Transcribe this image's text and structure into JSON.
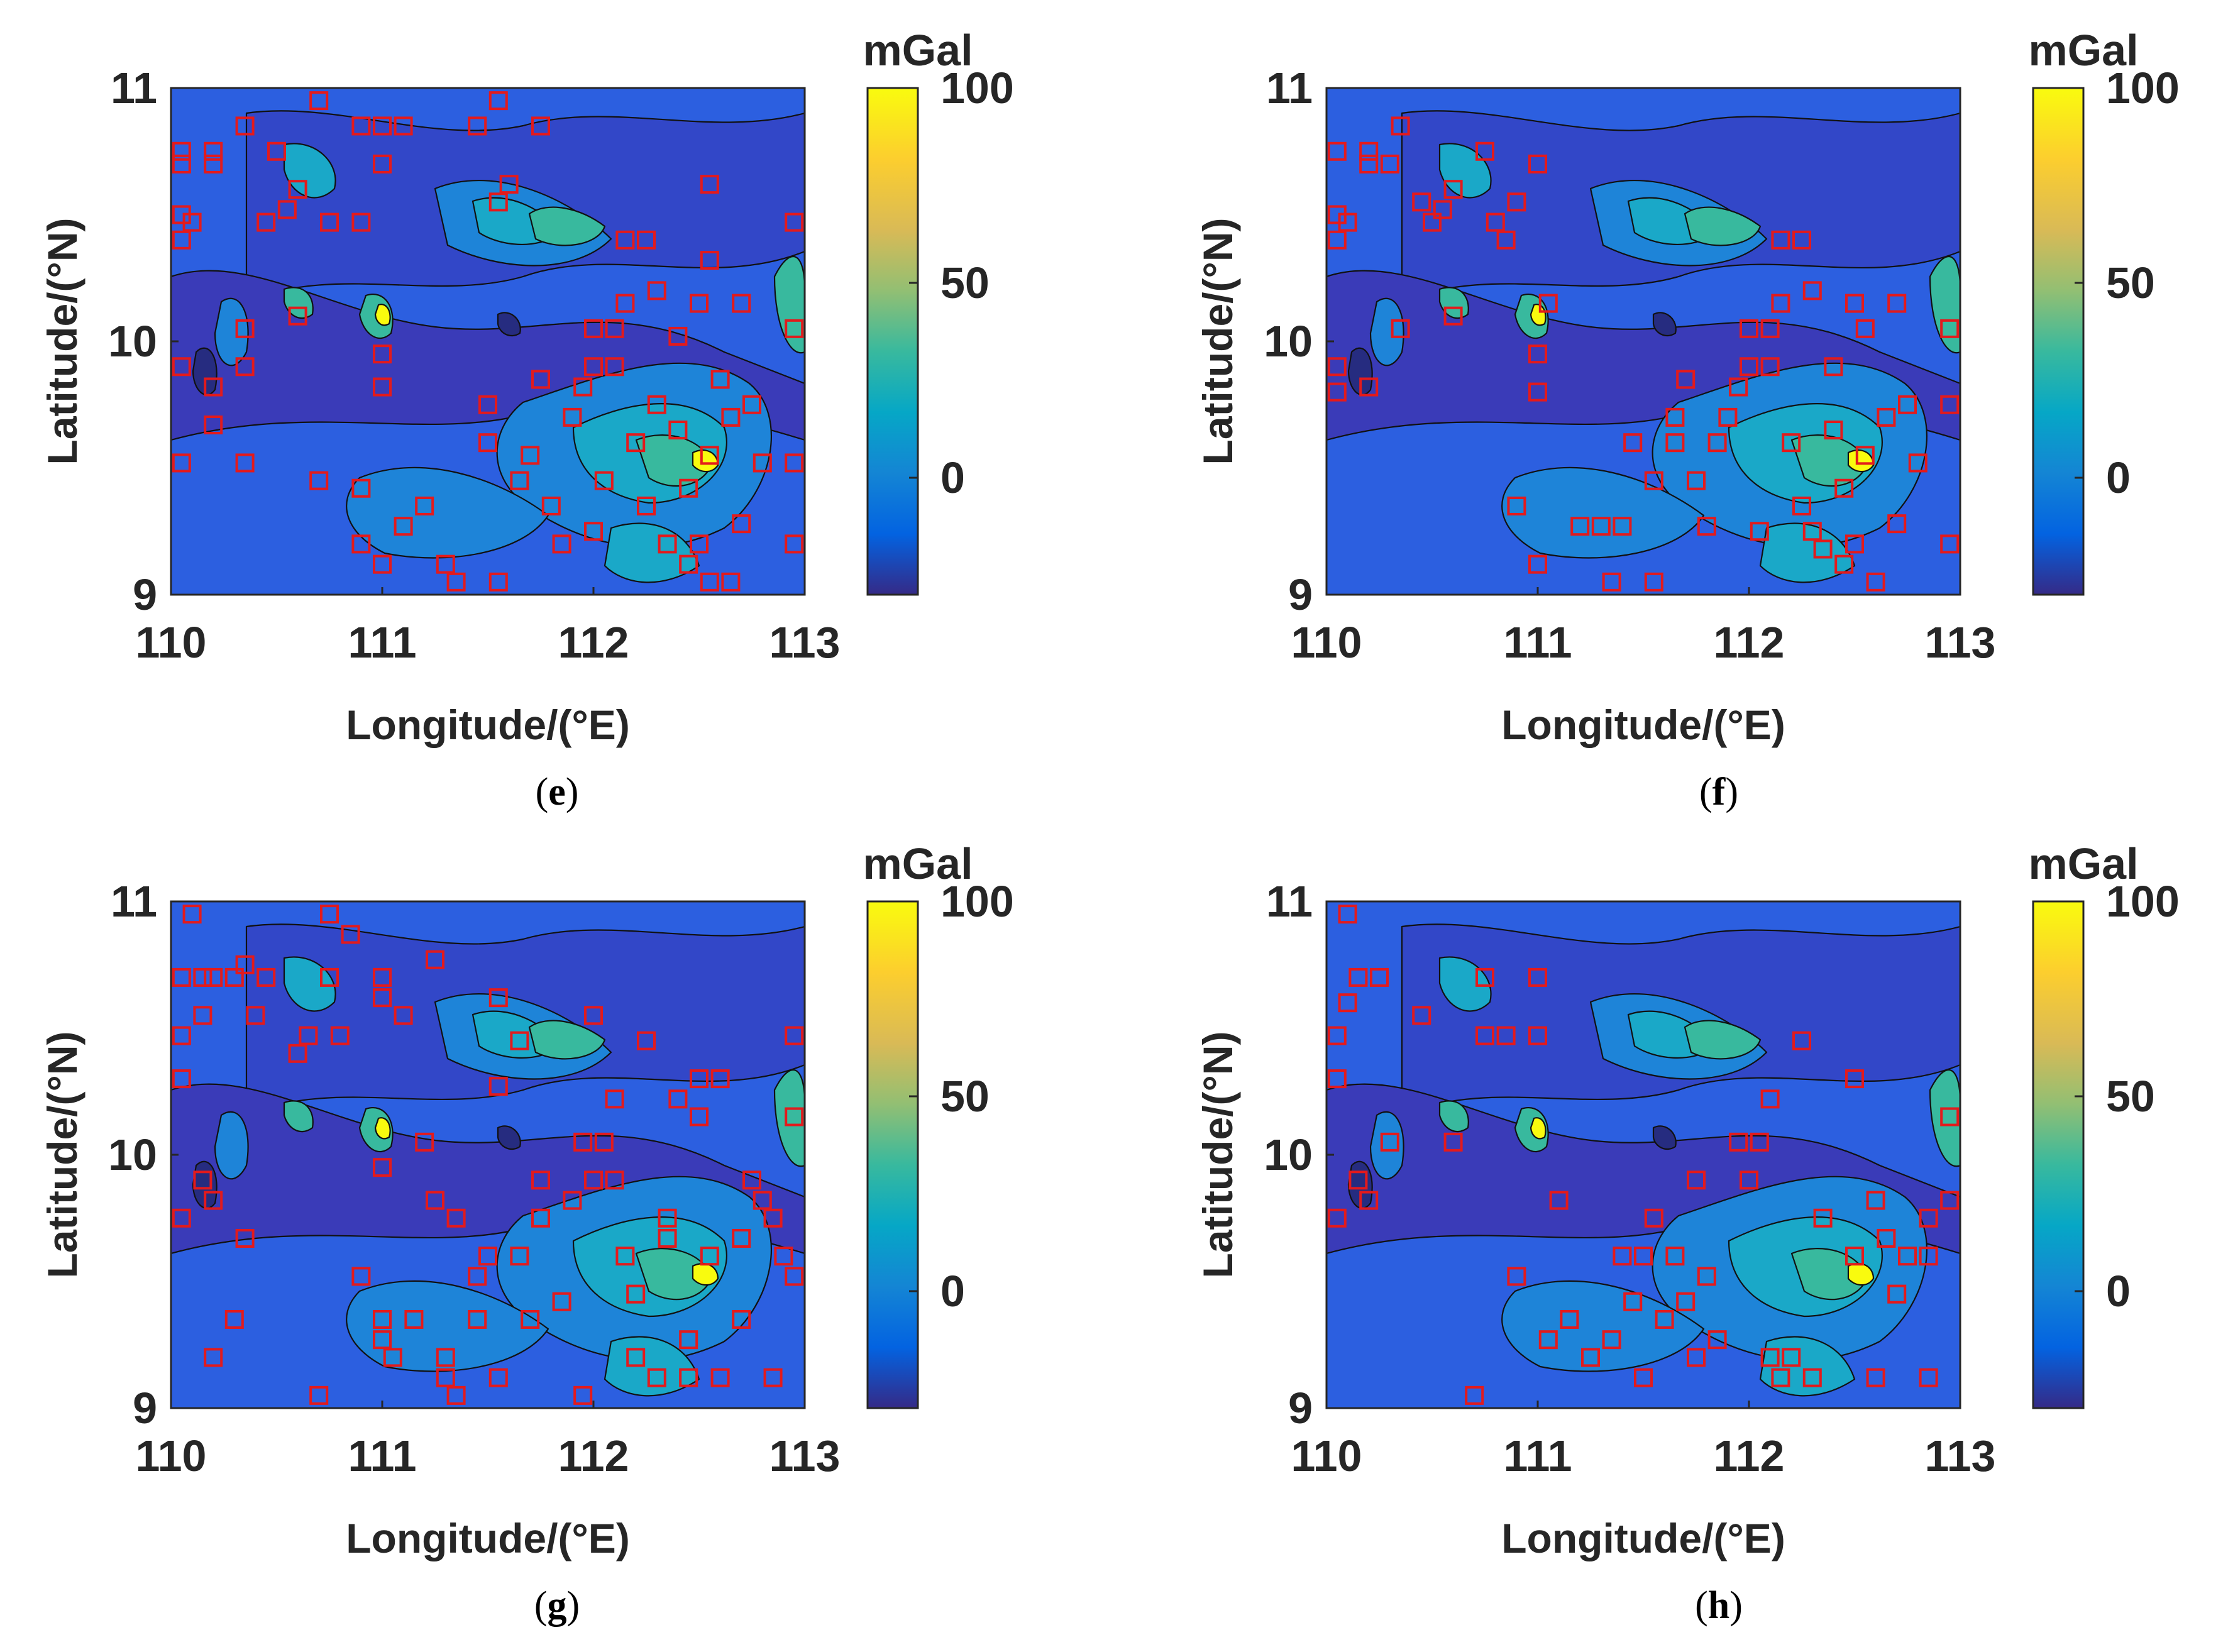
{
  "chart_data": [
    {
      "type": "heatmap",
      "panel_label": "e",
      "xlabel": "Longitude/(°E)",
      "ylabel": "Latitude/(°N)",
      "xlim": [
        110,
        113
      ],
      "ylim": [
        9,
        11
      ],
      "x_ticks": [
        "110",
        "111",
        "112",
        "113"
      ],
      "y_ticks": [
        "9",
        "10",
        "11"
      ],
      "colorbar": {
        "title": "mGal",
        "ticks": [
          "0",
          "50",
          "100"
        ],
        "range": [
          -30,
          100
        ]
      },
      "markers": [
        [
          110.05,
          10.75
        ],
        [
          110.05,
          10.7
        ],
        [
          110.05,
          10.5
        ],
        [
          110.05,
          10.4
        ],
        [
          110.05,
          9.9
        ],
        [
          110.05,
          9.52
        ],
        [
          110.1,
          10.47
        ],
        [
          110.2,
          10.75
        ],
        [
          110.2,
          10.7
        ],
        [
          110.2,
          9.82
        ],
        [
          110.2,
          9.67
        ],
        [
          110.35,
          10.85
        ],
        [
          110.35,
          10.05
        ],
        [
          110.35,
          9.9
        ],
        [
          110.35,
          9.52
        ],
        [
          110.45,
          10.47
        ],
        [
          110.5,
          10.75
        ],
        [
          110.55,
          10.52
        ],
        [
          110.6,
          10.6
        ],
        [
          110.6,
          10.1
        ],
        [
          110.7,
          10.95
        ],
        [
          110.7,
          9.45
        ],
        [
          110.75,
          10.47
        ],
        [
          110.9,
          10.85
        ],
        [
          110.9,
          10.47
        ],
        [
          110.9,
          9.42
        ],
        [
          110.9,
          9.2
        ],
        [
          111.0,
          10.85
        ],
        [
          111.0,
          10.7
        ],
        [
          111.0,
          9.95
        ],
        [
          111.0,
          9.82
        ],
        [
          111.0,
          9.12
        ],
        [
          111.1,
          10.85
        ],
        [
          111.1,
          9.27
        ],
        [
          111.2,
          9.35
        ],
        [
          111.3,
          9.12
        ],
        [
          111.35,
          9.05
        ],
        [
          111.45,
          10.85
        ],
        [
          111.5,
          9.75
        ],
        [
          111.5,
          9.6
        ],
        [
          111.55,
          10.95
        ],
        [
          111.55,
          10.55
        ],
        [
          111.55,
          9.05
        ],
        [
          111.6,
          10.62
        ],
        [
          111.65,
          9.45
        ],
        [
          111.7,
          9.55
        ],
        [
          111.75,
          10.85
        ],
        [
          111.75,
          9.85
        ],
        [
          111.8,
          9.35
        ],
        [
          111.85,
          9.2
        ],
        [
          111.9,
          9.7
        ],
        [
          111.95,
          9.82
        ],
        [
          112.0,
          10.05
        ],
        [
          112.0,
          9.9
        ],
        [
          112.0,
          9.25
        ],
        [
          112.05,
          9.45
        ],
        [
          112.1,
          10.05
        ],
        [
          112.1,
          9.9
        ],
        [
          112.15,
          10.4
        ],
        [
          112.15,
          10.15
        ],
        [
          112.2,
          9.6
        ],
        [
          112.25,
          10.4
        ],
        [
          112.25,
          9.35
        ],
        [
          112.3,
          10.2
        ],
        [
          112.3,
          9.75
        ],
        [
          112.35,
          9.2
        ],
        [
          112.4,
          10.02
        ],
        [
          112.4,
          9.65
        ],
        [
          112.45,
          9.42
        ],
        [
          112.45,
          9.12
        ],
        [
          112.5,
          10.15
        ],
        [
          112.5,
          9.2
        ],
        [
          112.55,
          10.62
        ],
        [
          112.55,
          10.32
        ],
        [
          112.55,
          9.55
        ],
        [
          112.55,
          9.05
        ],
        [
          112.6,
          9.85
        ],
        [
          112.65,
          9.7
        ],
        [
          112.65,
          9.05
        ],
        [
          112.7,
          10.15
        ],
        [
          112.7,
          9.28
        ],
        [
          112.75,
          9.75
        ],
        [
          112.8,
          9.52
        ],
        [
          112.95,
          10.47
        ],
        [
          112.95,
          10.05
        ],
        [
          112.95,
          9.52
        ],
        [
          112.95,
          9.2
        ]
      ]
    },
    {
      "type": "heatmap",
      "panel_label": "f",
      "xlabel": "Longitude/(°E)",
      "ylabel": "Latitude/(°N)",
      "xlim": [
        110,
        113
      ],
      "ylim": [
        9,
        11
      ],
      "x_ticks": [
        "110",
        "111",
        "112",
        "113"
      ],
      "y_ticks": [
        "9",
        "10",
        "11"
      ],
      "colorbar": {
        "title": "mGal",
        "ticks": [
          "0",
          "50",
          "100"
        ],
        "range": [
          -30,
          100
        ]
      },
      "markers": [
        [
          110.05,
          10.75
        ],
        [
          110.05,
          10.5
        ],
        [
          110.05,
          10.4
        ],
        [
          110.05,
          9.9
        ],
        [
          110.05,
          9.8
        ],
        [
          110.1,
          10.47
        ],
        [
          110.2,
          10.75
        ],
        [
          110.2,
          10.7
        ],
        [
          110.2,
          9.82
        ],
        [
          110.3,
          10.7
        ],
        [
          110.35,
          10.85
        ],
        [
          110.35,
          10.05
        ],
        [
          110.45,
          10.55
        ],
        [
          110.5,
          10.47
        ],
        [
          110.55,
          10.52
        ],
        [
          110.6,
          10.6
        ],
        [
          110.6,
          10.1
        ],
        [
          110.75,
          10.75
        ],
        [
          110.8,
          10.47
        ],
        [
          110.85,
          10.4
        ],
        [
          110.9,
          10.55
        ],
        [
          110.9,
          9.35
        ],
        [
          111.0,
          10.7
        ],
        [
          111.0,
          9.95
        ],
        [
          111.0,
          9.8
        ],
        [
          111.0,
          9.12
        ],
        [
          111.05,
          10.15
        ],
        [
          111.2,
          9.27
        ],
        [
          111.3,
          9.27
        ],
        [
          111.35,
          9.05
        ],
        [
          111.4,
          9.27
        ],
        [
          111.45,
          9.6
        ],
        [
          111.55,
          9.45
        ],
        [
          111.55,
          9.05
        ],
        [
          111.65,
          9.7
        ],
        [
          111.65,
          9.6
        ],
        [
          111.7,
          9.85
        ],
        [
          111.75,
          9.45
        ],
        [
          111.8,
          9.27
        ],
        [
          111.85,
          9.6
        ],
        [
          111.9,
          9.7
        ],
        [
          111.95,
          9.82
        ],
        [
          112.0,
          10.05
        ],
        [
          112.0,
          9.9
        ],
        [
          112.05,
          9.25
        ],
        [
          112.1,
          10.05
        ],
        [
          112.1,
          9.9
        ],
        [
          112.15,
          10.4
        ],
        [
          112.15,
          10.15
        ],
        [
          112.2,
          9.6
        ],
        [
          112.25,
          10.4
        ],
        [
          112.25,
          9.35
        ],
        [
          112.3,
          10.2
        ],
        [
          112.3,
          9.25
        ],
        [
          112.35,
          9.18
        ],
        [
          112.4,
          9.9
        ],
        [
          112.4,
          9.65
        ],
        [
          112.45,
          9.42
        ],
        [
          112.45,
          9.12
        ],
        [
          112.5,
          10.15
        ],
        [
          112.5,
          9.2
        ],
        [
          112.55,
          10.05
        ],
        [
          112.55,
          9.55
        ],
        [
          112.6,
          9.05
        ],
        [
          112.65,
          9.7
        ],
        [
          112.7,
          10.15
        ],
        [
          112.7,
          9.28
        ],
        [
          112.75,
          9.75
        ],
        [
          112.8,
          9.52
        ],
        [
          112.95,
          10.05
        ],
        [
          112.95,
          9.75
        ],
        [
          112.95,
          9.2
        ]
      ]
    },
    {
      "type": "heatmap",
      "panel_label": "g",
      "xlabel": "Longitude/(°E)",
      "ylabel": "Latitude/(°N)",
      "xlim": [
        110,
        113
      ],
      "ylim": [
        9,
        11
      ],
      "x_ticks": [
        "110",
        "111",
        "112",
        "113"
      ],
      "y_ticks": [
        "9",
        "10",
        "11"
      ],
      "colorbar": {
        "title": "mGal",
        "ticks": [
          "0",
          "50",
          "100"
        ],
        "range": [
          -30,
          100
        ]
      },
      "markers": [
        [
          110.1,
          10.95
        ],
        [
          110.05,
          10.7
        ],
        [
          110.05,
          10.47
        ],
        [
          110.05,
          10.3
        ],
        [
          110.05,
          9.75
        ],
        [
          110.15,
          10.7
        ],
        [
          110.15,
          10.55
        ],
        [
          110.15,
          9.9
        ],
        [
          110.2,
          10.7
        ],
        [
          110.2,
          9.82
        ],
        [
          110.2,
          9.2
        ],
        [
          110.3,
          10.7
        ],
        [
          110.3,
          9.35
        ],
        [
          110.35,
          10.75
        ],
        [
          110.35,
          9.67
        ],
        [
          110.4,
          10.55
        ],
        [
          110.45,
          10.7
        ],
        [
          110.6,
          10.4
        ],
        [
          110.65,
          10.47
        ],
        [
          110.7,
          9.05
        ],
        [
          110.75,
          10.95
        ],
        [
          110.75,
          10.7
        ],
        [
          110.8,
          10.47
        ],
        [
          110.85,
          10.87
        ],
        [
          110.9,
          9.52
        ],
        [
          111.0,
          10.7
        ],
        [
          111.0,
          10.62
        ],
        [
          111.0,
          9.95
        ],
        [
          111.0,
          9.35
        ],
        [
          111.0,
          9.27
        ],
        [
          111.05,
          9.2
        ],
        [
          111.1,
          10.55
        ],
        [
          111.15,
          9.35
        ],
        [
          111.2,
          10.05
        ],
        [
          111.25,
          10.77
        ],
        [
          111.25,
          9.82
        ],
        [
          111.3,
          9.2
        ],
        [
          111.3,
          9.12
        ],
        [
          111.35,
          9.05
        ],
        [
          111.35,
          9.75
        ],
        [
          111.45,
          9.52
        ],
        [
          111.45,
          9.35
        ],
        [
          111.5,
          9.6
        ],
        [
          111.55,
          10.62
        ],
        [
          111.55,
          10.27
        ],
        [
          111.55,
          9.12
        ],
        [
          111.65,
          10.45
        ],
        [
          111.65,
          9.6
        ],
        [
          111.7,
          9.35
        ],
        [
          111.75,
          9.9
        ],
        [
          111.75,
          9.75
        ],
        [
          111.85,
          9.42
        ],
        [
          111.9,
          9.82
        ],
        [
          111.95,
          10.05
        ],
        [
          111.95,
          9.05
        ],
        [
          112.0,
          10.55
        ],
        [
          112.0,
          9.9
        ],
        [
          112.05,
          10.05
        ],
        [
          112.1,
          10.22
        ],
        [
          112.1,
          9.9
        ],
        [
          112.15,
          9.6
        ],
        [
          112.2,
          9.45
        ],
        [
          112.2,
          9.2
        ],
        [
          112.25,
          10.45
        ],
        [
          112.3,
          9.12
        ],
        [
          112.35,
          9.75
        ],
        [
          112.35,
          9.67
        ],
        [
          112.4,
          10.22
        ],
        [
          112.45,
          9.27
        ],
        [
          112.45,
          9.12
        ],
        [
          112.5,
          10.3
        ],
        [
          112.5,
          10.15
        ],
        [
          112.55,
          9.6
        ],
        [
          112.6,
          10.3
        ],
        [
          112.6,
          9.12
        ],
        [
          112.7,
          9.35
        ],
        [
          112.7,
          9.67
        ],
        [
          112.75,
          9.9
        ],
        [
          112.8,
          9.82
        ],
        [
          112.85,
          9.75
        ],
        [
          112.9,
          9.6
        ],
        [
          112.85,
          9.12
        ],
        [
          112.95,
          10.47
        ],
        [
          112.95,
          10.15
        ],
        [
          112.95,
          9.52
        ]
      ]
    },
    {
      "type": "heatmap",
      "panel_label": "h",
      "xlabel": "Longitude/(°E)",
      "ylabel": "Latitude/(°N)",
      "xlim": [
        110,
        113
      ],
      "ylim": [
        9,
        11
      ],
      "x_ticks": [
        "110",
        "111",
        "112",
        "113"
      ],
      "y_ticks": [
        "9",
        "10",
        "11"
      ],
      "colorbar": {
        "title": "mGal",
        "ticks": [
          "0",
          "50",
          "100"
        ],
        "range": [
          -30,
          100
        ]
      },
      "markers": [
        [
          110.1,
          10.95
        ],
        [
          110.05,
          10.47
        ],
        [
          110.05,
          10.3
        ],
        [
          110.05,
          9.75
        ],
        [
          110.1,
          10.6
        ],
        [
          110.15,
          10.7
        ],
        [
          110.15,
          9.9
        ],
        [
          110.2,
          9.82
        ],
        [
          110.25,
          10.7
        ],
        [
          110.3,
          10.05
        ],
        [
          110.45,
          10.55
        ],
        [
          110.6,
          10.05
        ],
        [
          110.7,
          9.05
        ],
        [
          110.75,
          10.7
        ],
        [
          110.75,
          10.47
        ],
        [
          110.85,
          10.47
        ],
        [
          110.9,
          9.52
        ],
        [
          111.0,
          10.7
        ],
        [
          111.0,
          10.47
        ],
        [
          111.05,
          9.27
        ],
        [
          111.1,
          9.82
        ],
        [
          111.15,
          9.35
        ],
        [
          111.25,
          9.2
        ],
        [
          111.35,
          9.27
        ],
        [
          111.4,
          9.6
        ],
        [
          111.45,
          9.42
        ],
        [
          111.5,
          9.6
        ],
        [
          111.5,
          9.12
        ],
        [
          111.55,
          9.75
        ],
        [
          111.6,
          9.35
        ],
        [
          111.65,
          9.6
        ],
        [
          111.7,
          9.42
        ],
        [
          111.75,
          9.9
        ],
        [
          111.75,
          9.2
        ],
        [
          111.8,
          9.52
        ],
        [
          111.85,
          9.27
        ],
        [
          111.95,
          10.05
        ],
        [
          112.0,
          9.9
        ],
        [
          112.05,
          10.05
        ],
        [
          112.1,
          10.22
        ],
        [
          112.1,
          9.2
        ],
        [
          112.15,
          9.12
        ],
        [
          112.2,
          9.2
        ],
        [
          112.25,
          10.45
        ],
        [
          112.3,
          9.12
        ],
        [
          112.35,
          9.75
        ],
        [
          112.5,
          10.3
        ],
        [
          112.5,
          9.6
        ],
        [
          112.6,
          9.82
        ],
        [
          112.6,
          9.12
        ],
        [
          112.65,
          9.67
        ],
        [
          112.7,
          9.45
        ],
        [
          112.75,
          9.6
        ],
        [
          112.85,
          9.75
        ],
        [
          112.85,
          9.6
        ],
        [
          112.85,
          9.12
        ],
        [
          112.95,
          10.15
        ],
        [
          112.95,
          9.82
        ]
      ]
    }
  ]
}
